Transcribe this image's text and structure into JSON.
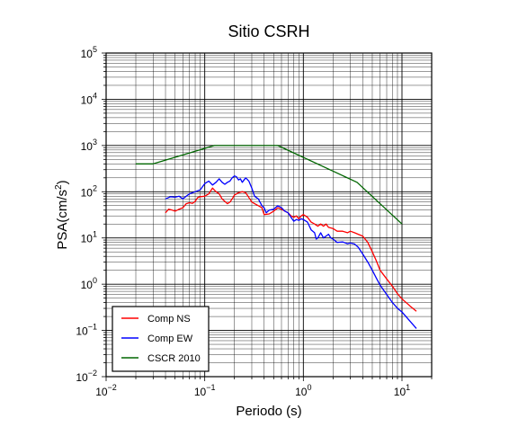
{
  "chart_data": {
    "type": "line",
    "title": "Sitio CSRH",
    "xlabel": "Periodo (s)",
    "ylabel": "PSA(cm/s",
    "ylabel_sup": "2",
    "ylabel_close": ")",
    "xscale": "log",
    "yscale": "log",
    "xlim": [
      0.01,
      20
    ],
    "ylim": [
      0.01,
      100000
    ],
    "grid": true,
    "legend_position": "bottom-left",
    "x_ticks": [
      {
        "value": 0.01,
        "base": "10",
        "exp": "−2"
      },
      {
        "value": 0.1,
        "base": "10",
        "exp": "−1"
      },
      {
        "value": 1,
        "base": "10",
        "exp": "0"
      },
      {
        "value": 10,
        "base": "10",
        "exp": "1"
      }
    ],
    "y_ticks": [
      {
        "value": 0.01,
        "base": "10",
        "exp": "−2"
      },
      {
        "value": 0.1,
        "base": "10",
        "exp": "−1"
      },
      {
        "value": 1,
        "base": "10",
        "exp": "0"
      },
      {
        "value": 10,
        "base": "10",
        "exp": "1"
      },
      {
        "value": 100,
        "base": "10",
        "exp": "2"
      },
      {
        "value": 1000,
        "base": "10",
        "exp": "3"
      },
      {
        "value": 10000,
        "base": "10",
        "exp": "4"
      },
      {
        "value": 100000,
        "base": "10",
        "exp": "5"
      }
    ],
    "series": [
      {
        "name": "Comp NS",
        "color": "#ff0000",
        "points": [
          [
            0.04,
            35
          ],
          [
            0.043,
            42
          ],
          [
            0.047,
            40
          ],
          [
            0.05,
            38
          ],
          [
            0.055,
            42
          ],
          [
            0.06,
            45
          ],
          [
            0.065,
            55
          ],
          [
            0.07,
            58
          ],
          [
            0.075,
            56
          ],
          [
            0.08,
            62
          ],
          [
            0.085,
            75
          ],
          [
            0.09,
            78
          ],
          [
            0.1,
            80
          ],
          [
            0.11,
            90
          ],
          [
            0.12,
            120
          ],
          [
            0.13,
            100
          ],
          [
            0.14,
            90
          ],
          [
            0.15,
            70
          ],
          [
            0.16,
            62
          ],
          [
            0.17,
            55
          ],
          [
            0.18,
            60
          ],
          [
            0.19,
            70
          ],
          [
            0.2,
            85
          ],
          [
            0.22,
            95
          ],
          [
            0.24,
            100
          ],
          [
            0.26,
            95
          ],
          [
            0.28,
            75
          ],
          [
            0.3,
            60
          ],
          [
            0.32,
            55
          ],
          [
            0.35,
            50
          ],
          [
            0.38,
            45
          ],
          [
            0.4,
            32
          ],
          [
            0.45,
            33
          ],
          [
            0.5,
            38
          ],
          [
            0.55,
            45
          ],
          [
            0.6,
            42
          ],
          [
            0.65,
            38
          ],
          [
            0.7,
            35
          ],
          [
            0.75,
            30
          ],
          [
            0.8,
            28
          ],
          [
            0.85,
            30
          ],
          [
            0.9,
            26
          ],
          [
            0.95,
            30
          ],
          [
            1.0,
            32
          ],
          [
            1.1,
            28
          ],
          [
            1.2,
            22
          ],
          [
            1.3,
            20
          ],
          [
            1.4,
            18
          ],
          [
            1.5,
            20
          ],
          [
            1.6,
            18
          ],
          [
            1.7,
            20
          ],
          [
            1.8,
            17
          ],
          [
            2.0,
            16
          ],
          [
            2.2,
            14
          ],
          [
            2.5,
            14
          ],
          [
            2.8,
            13
          ],
          [
            3.0,
            14
          ],
          [
            3.3,
            13
          ],
          [
            3.6,
            12
          ],
          [
            4.0,
            11
          ],
          [
            4.5,
            8
          ],
          [
            5.0,
            5
          ],
          [
            5.5,
            3.2
          ],
          [
            6.0,
            2
          ],
          [
            7.0,
            1.3
          ],
          [
            8.0,
            0.9
          ],
          [
            9.0,
            0.62
          ],
          [
            10,
            0.48
          ],
          [
            12,
            0.34
          ],
          [
            14,
            0.26
          ]
        ]
      },
      {
        "name": "Comp EW",
        "color": "#0000ff",
        "points": [
          [
            0.04,
            70
          ],
          [
            0.045,
            78
          ],
          [
            0.05,
            76
          ],
          [
            0.055,
            80
          ],
          [
            0.06,
            70
          ],
          [
            0.065,
            80
          ],
          [
            0.07,
            90
          ],
          [
            0.08,
            100
          ],
          [
            0.09,
            110
          ],
          [
            0.1,
            150
          ],
          [
            0.11,
            170
          ],
          [
            0.12,
            140
          ],
          [
            0.13,
            160
          ],
          [
            0.14,
            190
          ],
          [
            0.15,
            160
          ],
          [
            0.16,
            145
          ],
          [
            0.17,
            160
          ],
          [
            0.18,
            170
          ],
          [
            0.19,
            200
          ],
          [
            0.2,
            220
          ],
          [
            0.21,
            210
          ],
          [
            0.22,
            180
          ],
          [
            0.23,
            190
          ],
          [
            0.24,
            160
          ],
          [
            0.26,
            200
          ],
          [
            0.28,
            170
          ],
          [
            0.3,
            120
          ],
          [
            0.32,
            80
          ],
          [
            0.35,
            70
          ],
          [
            0.38,
            50
          ],
          [
            0.4,
            45
          ],
          [
            0.42,
            35
          ],
          [
            0.45,
            40
          ],
          [
            0.5,
            42
          ],
          [
            0.55,
            50
          ],
          [
            0.6,
            45
          ],
          [
            0.65,
            38
          ],
          [
            0.7,
            35
          ],
          [
            0.75,
            28
          ],
          [
            0.8,
            23
          ],
          [
            0.85,
            25
          ],
          [
            0.9,
            24
          ],
          [
            0.95,
            26
          ],
          [
            1.0,
            25
          ],
          [
            1.1,
            22
          ],
          [
            1.2,
            15
          ],
          [
            1.3,
            13
          ],
          [
            1.35,
            9.5
          ],
          [
            1.4,
            10
          ],
          [
            1.5,
            13
          ],
          [
            1.6,
            10
          ],
          [
            1.7,
            11
          ],
          [
            1.8,
            12
          ],
          [
            1.9,
            10
          ],
          [
            2.0,
            9.5
          ],
          [
            2.2,
            8
          ],
          [
            2.5,
            8.2
          ],
          [
            2.8,
            7.5
          ],
          [
            3.0,
            7.8
          ],
          [
            3.3,
            7.4
          ],
          [
            3.6,
            6.3
          ],
          [
            4.0,
            4.5
          ],
          [
            4.5,
            3
          ],
          [
            5.0,
            2
          ],
          [
            5.5,
            1.35
          ],
          [
            6.0,
            0.95
          ],
          [
            7.0,
            0.6
          ],
          [
            8.0,
            0.4
          ],
          [
            9.0,
            0.3
          ],
          [
            10,
            0.25
          ],
          [
            12,
            0.16
          ],
          [
            14,
            0.11
          ]
        ]
      },
      {
        "name": "CSCR 2010",
        "color": "#006600",
        "points": [
          [
            0.02,
            400
          ],
          [
            0.03,
            400
          ],
          [
            0.125,
            1000
          ],
          [
            0.55,
            1000
          ],
          [
            3.5,
            160
          ],
          [
            10,
            20
          ]
        ]
      }
    ]
  }
}
